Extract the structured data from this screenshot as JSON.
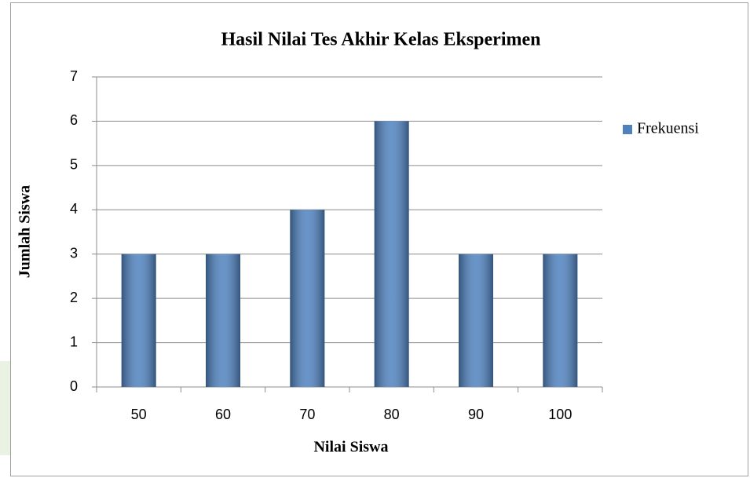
{
  "chart_data": {
    "type": "bar",
    "title": "Hasil Nilai Tes Akhir Kelas Eksperimen",
    "x_label": "Nilai Siswa",
    "y_label": "Jumlah Siswa",
    "categories": [
      "50",
      "60",
      "70",
      "80",
      "90",
      "100"
    ],
    "series": [
      {
        "name": "Frekuensi",
        "color": "#4f81bd",
        "values": [
          3,
          3,
          4,
          6,
          3,
          3
        ]
      }
    ],
    "ylim": [
      0,
      7
    ],
    "yticks": [
      0,
      1,
      2,
      3,
      4,
      5,
      6,
      7
    ],
    "grid": true,
    "legend": "right"
  }
}
